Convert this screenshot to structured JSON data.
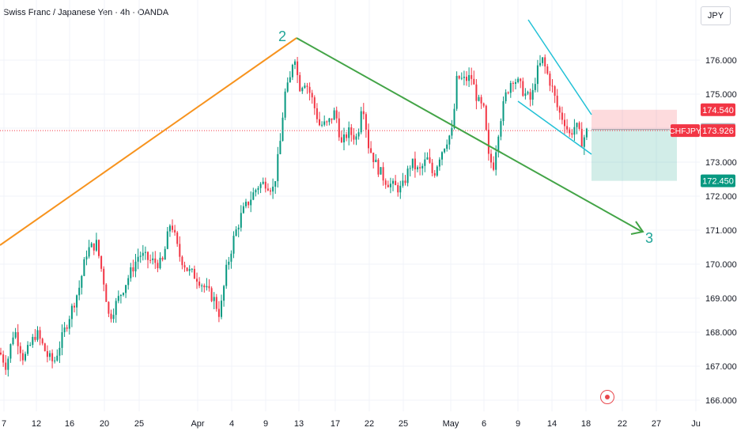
{
  "header": {
    "title": "Swiss Franc / Japanese Yen · 4h · OANDA",
    "currency": "JPY"
  },
  "chart_data": {
    "type": "candlestick",
    "symbol": "CHFJPY",
    "timeframe": "4h",
    "ylim": [
      165.75,
      176.8
    ],
    "x_labels": [
      "7",
      "12",
      "16",
      "20",
      "25",
      "Apr",
      "4",
      "9",
      "13",
      "17",
      "22",
      "25",
      "May",
      "6",
      "9",
      "14",
      "18",
      "22",
      "27",
      "Ju"
    ],
    "y_ticks": [
      "166.000",
      "167.000",
      "168.000",
      "169.000",
      "170.000",
      "171.000",
      "172.000",
      "173.000",
      "176.000"
    ],
    "price_labels": [
      {
        "id": "stop",
        "label": "174.540",
        "value": 174.54,
        "color": "#f23645"
      },
      {
        "id": "entry",
        "label": "173.958",
        "value": 173.958,
        "color": "#b2b5be"
      },
      {
        "id": "current",
        "symbol": "CHFJPY",
        "label": "173.926",
        "value": 173.926,
        "color": "#f23645"
      },
      {
        "id": "target",
        "label": "172.450",
        "value": 172.45,
        "color": "#089981"
      }
    ],
    "wave_labels": [
      "2",
      "3"
    ],
    "short_position": {
      "entry": 173.958,
      "stop": 174.54,
      "target": 172.45
    }
  },
  "colors": {
    "up": "#089981",
    "down": "#f23645",
    "orange_line": "#f7931e",
    "green_line": "#43a447",
    "wedge": "#22c1d6",
    "wave_label": "#20a598",
    "grid": "#f0f3fa",
    "axis_text": "#131722"
  }
}
